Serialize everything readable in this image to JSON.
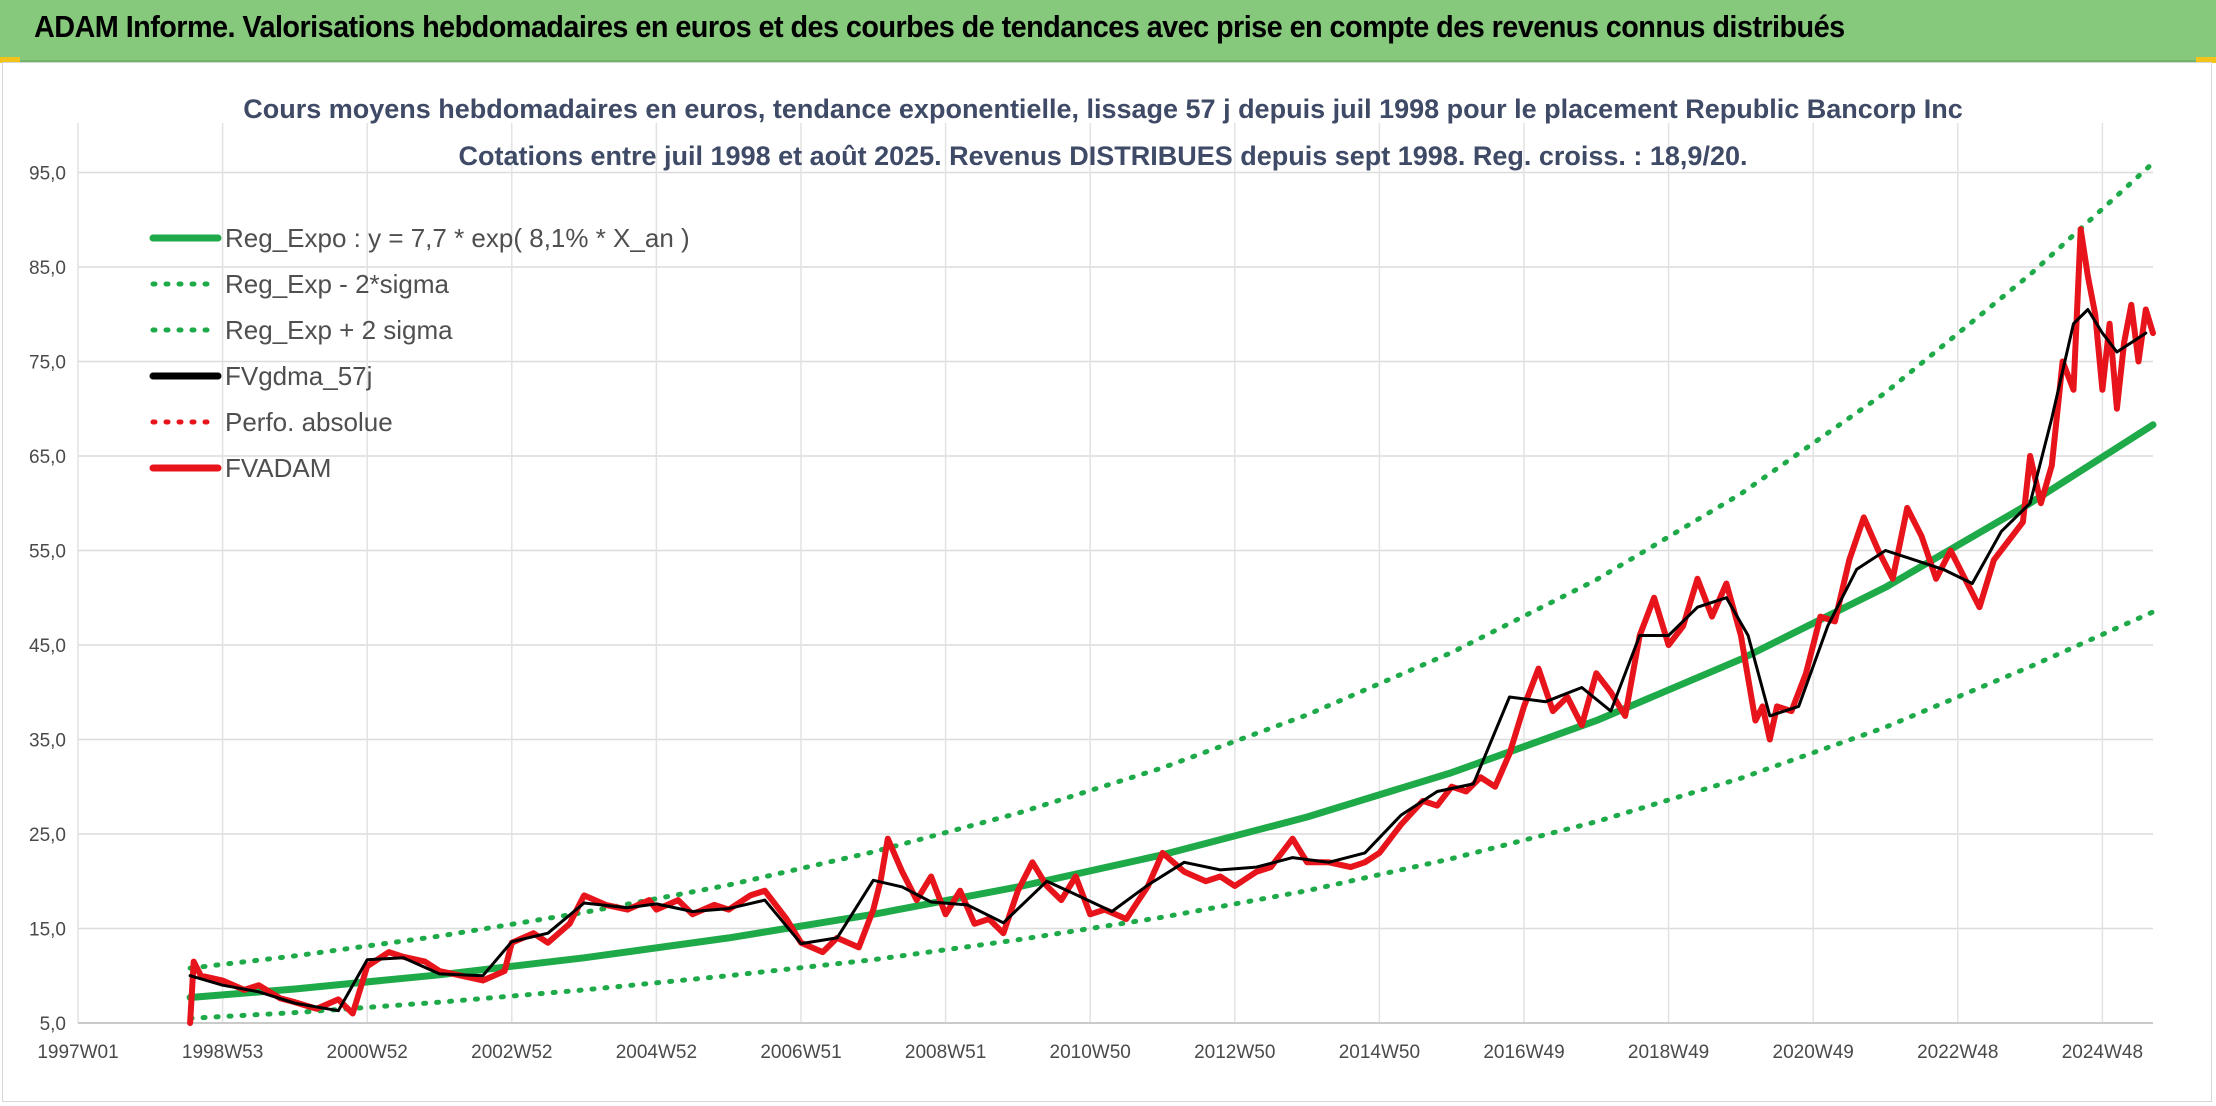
{
  "header": {
    "title": "ADAM Informe. Valorisations hebdomadaires en euros et des courbes de tendances avec prise en compte des revenus connus distribués"
  },
  "colors": {
    "header_bg": "#86c97c",
    "reg_expo": "#1faa4a",
    "sigma_bands": "#1faa4a",
    "fvgdma": "#000000",
    "perfo_absolue": "#e8141b",
    "fvadam": "#e8141b"
  },
  "chart_data": {
    "type": "line",
    "title": "Cours moyens hebdomadaires en euros, tendance exponentielle, lissage 57 j depuis juil 1998 pour le placement Republic Bancorp Inc",
    "subtitle": "Cotations entre juil 1998 et août 2025. Revenus DISTRIBUES depuis sept 1998. Reg. croiss. : 18,9/20.",
    "xlabel": "",
    "ylabel": "",
    "x_range": [
      1997.0,
      2025.7
    ],
    "ylim": [
      5,
      96
    ],
    "y_ticks": [
      "5,0",
      "15,0",
      "25,0",
      "35,0",
      "45,0",
      "55,0",
      "65,0",
      "75,0",
      "85,0",
      "95,0"
    ],
    "x_ticks": [
      "1997W01",
      "1998W53",
      "2000W52",
      "2002W52",
      "2004W52",
      "2006W51",
      "2008W51",
      "2010W50",
      "2012W50",
      "2014W50",
      "2016W49",
      "2018W49",
      "2020W49",
      "2022W48",
      "2024W48"
    ],
    "grid": true,
    "legend_position": "top-left",
    "series": [
      {
        "name": "Reg_Expo : y = 7,7 * exp( 8,1% *  X_an )",
        "style": "solid-thick",
        "x": [
          1998.55,
          2000,
          2002,
          2004,
          2006,
          2008,
          2010,
          2012,
          2014,
          2016,
          2018,
          2020,
          2022,
          2024,
          2025.7
        ],
        "values": [
          7.7,
          8.6,
          10.1,
          11.9,
          14.0,
          16.5,
          19.4,
          22.8,
          26.8,
          31.5,
          37.0,
          43.5,
          51.1,
          60.0,
          68.3
        ]
      },
      {
        "name": "Reg_Exp - 2*sigma",
        "style": "dotted",
        "x": [
          1998.55,
          2000,
          2002,
          2004,
          2006,
          2008,
          2010,
          2012,
          2014,
          2016,
          2018,
          2020,
          2022,
          2024,
          2025.7
        ],
        "values": [
          5.5,
          6.1,
          7.2,
          8.5,
          10.0,
          11.7,
          13.8,
          16.2,
          19.0,
          22.4,
          26.3,
          30.9,
          36.3,
          42.7,
          48.5
        ]
      },
      {
        "name": "Reg_Exp + 2 sigma",
        "style": "dotted",
        "x": [
          1998.55,
          2000,
          2002,
          2004,
          2006,
          2008,
          2010,
          2012,
          2014,
          2016,
          2018,
          2020,
          2022,
          2024,
          2025.7
        ],
        "values": [
          10.8,
          12.1,
          14.2,
          16.7,
          19.6,
          23.1,
          27.2,
          32.0,
          37.6,
          44.2,
          51.9,
          61.0,
          71.7,
          84.2,
          96.0
        ]
      },
      {
        "name": "FVgdma_57j",
        "style": "solid-thin",
        "x": [
          1998.55,
          1999,
          1999.5,
          2000,
          2000.6,
          2001,
          2001.5,
          2002,
          2002.6,
          2003,
          2003.5,
          2004,
          2004.6,
          2005,
          2005.5,
          2006,
          2006.5,
          2007,
          2007.5,
          2008,
          2008.4,
          2008.8,
          2009.3,
          2009.8,
          2010.4,
          2010.8,
          2011.3,
          2011.8,
          2012.3,
          2012.8,
          2013.3,
          2013.8,
          2014.3,
          2014.8,
          2015.3,
          2015.8,
          2016.3,
          2016.8,
          2017.3,
          2017.8,
          2018.2,
          2018.6,
          2019,
          2019.4,
          2019.8,
          2020.1,
          2020.4,
          2020.8,
          2021.2,
          2021.6,
          2022,
          2022.4,
          2022.8,
          2023.2,
          2023.6,
          2024,
          2024.3,
          2024.6,
          2024.8,
          2025,
          2025.2,
          2025.4,
          2025.6
        ],
        "values": [
          10.0,
          9.0,
          8.3,
          7.1,
          6.3,
          11.7,
          11.9,
          10.2,
          10.0,
          13.6,
          14.5,
          17.7,
          17.2,
          17.6,
          16.8,
          17.1,
          18.0,
          13.4,
          14.0,
          20.1,
          19.4,
          17.8,
          17.5,
          15.6,
          20.0,
          18.6,
          16.8,
          19.6,
          22.0,
          21.2,
          21.5,
          22.5,
          22.0,
          23.0,
          27.0,
          29.5,
          30.3,
          39.5,
          39.0,
          40.5,
          38.0,
          46.0,
          46.0,
          49.0,
          50.0,
          46.0,
          37.5,
          38.5,
          47.0,
          53.0,
          55.0,
          54.0,
          53.0,
          51.5,
          57.0,
          60.0,
          69.0,
          79.0,
          80.5,
          78.0,
          76.0,
          77.0,
          78.0
        ]
      },
      {
        "name": "Perfo. absolue",
        "style": "dotted",
        "x": [],
        "values": []
      },
      {
        "name": "FVADAM",
        "style": "solid-thick",
        "x": [
          1998.55,
          1998.6,
          1998.7,
          1999,
          1999.3,
          1999.5,
          1999.8,
          2000,
          2000.3,
          2000.6,
          2000.8,
          2001,
          2001.3,
          2001.5,
          2001.8,
          2002,
          2002.3,
          2002.6,
          2002.9,
          2003,
          2003.3,
          2003.5,
          2003.8,
          2004,
          2004.3,
          2004.6,
          2004.9,
          2005,
          2005.3,
          2005.5,
          2005.8,
          2006,
          2006.3,
          2006.5,
          2006.8,
          2007,
          2007.3,
          2007.5,
          2007.8,
          2008,
          2008.1,
          2008.2,
          2008.4,
          2008.6,
          2008.8,
          2009,
          2009.2,
          2009.4,
          2009.6,
          2009.8,
          2010,
          2010.2,
          2010.4,
          2010.6,
          2010.8,
          2011,
          2011.2,
          2011.5,
          2011.8,
          2012,
          2012.3,
          2012.6,
          2012.8,
          2013,
          2013.3,
          2013.5,
          2013.8,
          2014,
          2014.3,
          2014.6,
          2014.8,
          2015,
          2015.3,
          2015.6,
          2015.8,
          2016,
          2016.2,
          2016.4,
          2016.6,
          2016.8,
          2017,
          2017.2,
          2017.4,
          2017.6,
          2017.8,
          2018,
          2018.2,
          2018.4,
          2018.6,
          2018.8,
          2019,
          2019.2,
          2019.4,
          2019.6,
          2019.8,
          2020,
          2020.1,
          2020.2,
          2020.3,
          2020.4,
          2020.5,
          2020.7,
          2020.9,
          2021.1,
          2021.3,
          2021.5,
          2021.7,
          2021.9,
          2022.1,
          2022.3,
          2022.5,
          2022.7,
          2022.9,
          2023.1,
          2023.3,
          2023.5,
          2023.7,
          2023.9,
          2024.0,
          2024.15,
          2024.3,
          2024.45,
          2024.6,
          2024.7,
          2024.8,
          2024.9,
          2025.0,
          2025.1,
          2025.2,
          2025.3,
          2025.4,
          2025.5,
          2025.6,
          2025.7
        ],
        "values": [
          5.0,
          11.5,
          10.0,
          9.5,
          8.5,
          9.0,
          7.6,
          7.2,
          6.5,
          7.5,
          6.0,
          11.0,
          12.5,
          12.0,
          11.5,
          10.5,
          10.0,
          9.5,
          10.5,
          13.5,
          14.5,
          13.5,
          15.5,
          18.5,
          17.5,
          17.0,
          18.0,
          17.0,
          18.0,
          16.5,
          17.5,
          17.0,
          18.5,
          19.0,
          16.0,
          13.5,
          12.5,
          14.0,
          13.0,
          17.0,
          20.0,
          24.5,
          21.0,
          18.0,
          20.5,
          16.5,
          19.0,
          15.5,
          16.0,
          14.5,
          19.0,
          22.0,
          19.5,
          18.0,
          20.5,
          16.5,
          17.0,
          16.0,
          19.5,
          23.0,
          21.0,
          20.0,
          20.5,
          19.5,
          21.0,
          21.5,
          24.5,
          22.0,
          22.0,
          21.5,
          22.0,
          23.0,
          26.0,
          28.5,
          28.0,
          30.0,
          29.5,
          31.0,
          30.0,
          33.5,
          38.5,
          42.5,
          38.0,
          39.5,
          36.5,
          42.0,
          40.0,
          37.5,
          46.0,
          50.0,
          45.0,
          47.0,
          52.0,
          48.0,
          51.5,
          46.0,
          41.5,
          37.0,
          38.5,
          35.0,
          38.5,
          38.0,
          42.0,
          48.0,
          47.5,
          54.0,
          58.5,
          55.0,
          52.0,
          59.5,
          56.5,
          52.0,
          55.0,
          52.0,
          49.0,
          54.0,
          56.0,
          58.0,
          65.0,
          60.0,
          64.0,
          75.0,
          72.0,
          89.0,
          84.0,
          80.0,
          72.0,
          79.0,
          70.0,
          77.0,
          81.0,
          75.0,
          80.5,
          78.0
        ]
      }
    ]
  }
}
